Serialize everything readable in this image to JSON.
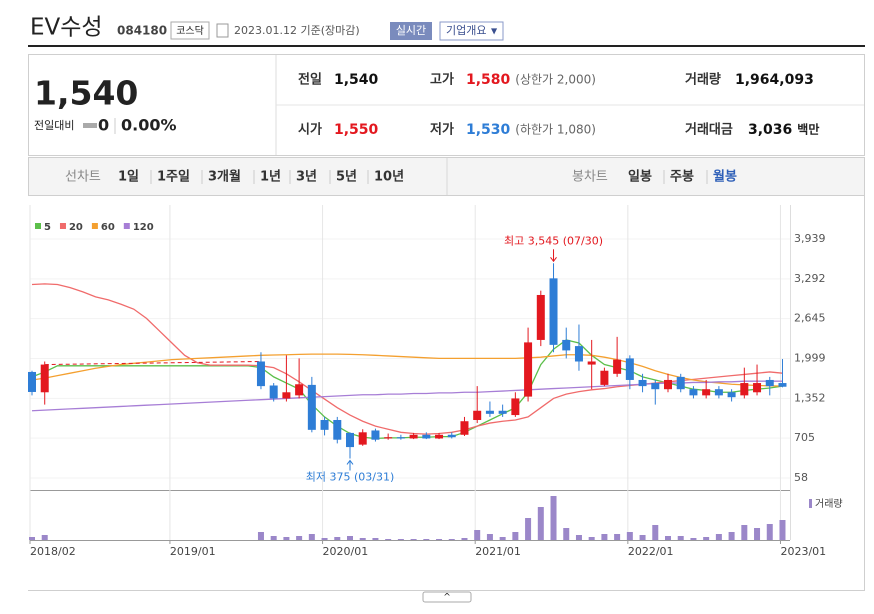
{
  "header": {
    "name": "EV수성",
    "code": "084180",
    "market": "코스닥",
    "date": "2023.01.12 기준(장마감)",
    "realtime": "실시간",
    "overview": "기업개요"
  },
  "quote": {
    "price": "1,540",
    "change_label": "전일대비",
    "change": "0",
    "change_pct": "0.00%",
    "rows": [
      [
        {
          "label": "전일",
          "value": "1,540"
        },
        {
          "label": "고가",
          "value": "1,580",
          "note": "(상한가 2,000)"
        },
        {
          "label": "거래량",
          "value": "1,964,093"
        }
      ],
      [
        {
          "label": "시가",
          "value": "1,550"
        },
        {
          "label": "저가",
          "value": "1,530",
          "note": "(하한가 1,080)"
        },
        {
          "label": "거래대금",
          "value": "3,036",
          "unit": "백만"
        }
      ]
    ]
  },
  "nav": {
    "line_label": "선차트",
    "line_periods": [
      "1일",
      "1주일",
      "3개월",
      "1년",
      "3년",
      "5년",
      "10년"
    ],
    "candle_label": "봉차트",
    "candle_periods": [
      "일봉",
      "주봉",
      "월봉"
    ],
    "candle_selected": 2
  },
  "chart_data": {
    "type": "candlestick",
    "categories": [
      "2018/02",
      null,
      null,
      null,
      null,
      null,
      null,
      null,
      null,
      null,
      null,
      "2019/01",
      null,
      null,
      null,
      null,
      null,
      null,
      null,
      null,
      null,
      null,
      null,
      "2020/01",
      null,
      null,
      null,
      null,
      null,
      null,
      null,
      null,
      null,
      null,
      null,
      "2021/01",
      null,
      null,
      null,
      null,
      null,
      null,
      null,
      null,
      null,
      null,
      null,
      "2022/01",
      null,
      null,
      null,
      null,
      null,
      null,
      null,
      null,
      null,
      null,
      null,
      "2023/01"
    ],
    "open": [
      1780,
      1450,
      null,
      null,
      null,
      null,
      null,
      null,
      null,
      null,
      null,
      null,
      null,
      null,
      null,
      null,
      null,
      null,
      1950,
      1560,
      1350,
      1400,
      1570,
      1000,
      1000,
      790,
      600,
      830,
      700,
      720,
      700,
      760,
      700,
      760,
      760,
      1000,
      1150,
      1150,
      1080,
      1380,
      2300,
      3300,
      2300,
      2200,
      1900,
      1570,
      1750,
      2000,
      1650,
      1600,
      1500,
      1700,
      1500,
      1400,
      1500,
      1450,
      1400,
      1450,
      1650,
      1600
    ],
    "high": [
      1800,
      1950,
      null,
      null,
      null,
      null,
      null,
      null,
      null,
      null,
      null,
      null,
      null,
      null,
      null,
      null,
      null,
      null,
      2100,
      1600,
      2050,
      2000,
      1700,
      1050,
      1050,
      800,
      850,
      860,
      780,
      760,
      790,
      800,
      790,
      800,
      1050,
      1550,
      1300,
      1250,
      1450,
      2500,
      3100,
      3545,
      2500,
      2550,
      2300,
      1850,
      2350,
      2050,
      1750,
      1650,
      1750,
      1750,
      1550,
      1650,
      1550,
      1500,
      1850,
      1900,
      1700,
      1990
    ],
    "low": [
      1400,
      1250,
      null,
      null,
      null,
      null,
      null,
      null,
      null,
      null,
      null,
      null,
      null,
      null,
      null,
      null,
      null,
      null,
      1500,
      1300,
      1300,
      1350,
      800,
      750,
      620,
      375,
      580,
      650,
      680,
      680,
      690,
      690,
      690,
      700,
      740,
      950,
      1050,
      1050,
      1050,
      1300,
      2200,
      2100,
      2000,
      1800,
      1500,
      1550,
      1700,
      1500,
      1450,
      1250,
      1450,
      1450,
      1350,
      1350,
      1350,
      1300,
      1350,
      1400,
      1400,
      1530
    ],
    "close": [
      1455,
      1900,
      null,
      null,
      null,
      null,
      null,
      null,
      null,
      null,
      null,
      null,
      null,
      null,
      null,
      null,
      null,
      null,
      1550,
      1350,
      1450,
      1580,
      840,
      840,
      680,
      560,
      800,
      680,
      720,
      700,
      760,
      700,
      760,
      720,
      980,
      1150,
      1100,
      1100,
      1350,
      2260,
      3030,
      2220,
      2130,
      1950,
      1950,
      1800,
      1980,
      1650,
      1550,
      1500,
      1650,
      1500,
      1400,
      1500,
      1400,
      1370,
      1600,
      1600,
      1550,
      1540
    ],
    "up_color": "#e3181f",
    "down_color": "#2e7dd6",
    "ylim": [
      58,
      3939
    ],
    "yticks": [
      {
        "value": 3939,
        "label": "3,939"
      },
      {
        "value": 3292,
        "label": "3,292"
      },
      {
        "value": 2645,
        "label": "2,645"
      },
      {
        "value": 1999,
        "label": "1,999"
      },
      {
        "value": 1352,
        "label": "1,352"
      },
      705,
      58
    ],
    "grid": true,
    "moving_averages": [
      {
        "name": "5",
        "color": "#5cbf4a",
        "values": [
          1700,
          1780,
          1880,
          1880,
          1880,
          1880,
          1880,
          1880,
          1880,
          1880,
          1880,
          1880,
          1880,
          1880,
          1880,
          1880,
          1880,
          1880,
          1850,
          1700,
          1600,
          1500,
          1250,
          1050,
          900,
          780,
          720,
          700,
          710,
          710,
          720,
          720,
          730,
          730,
          800,
          900,
          1000,
          1100,
          1200,
          1450,
          1900,
          2150,
          2300,
          2250,
          2050,
          1900,
          1850,
          1800,
          1700,
          1650,
          1600,
          1550,
          1500,
          1480,
          1450,
          1450,
          1480,
          1500,
          1520,
          1550
        ]
      },
      {
        "name": "20",
        "color": "#f06b6b",
        "values": [
          3200,
          3210,
          3200,
          3150,
          3080,
          3000,
          2950,
          2880,
          2800,
          2650,
          2450,
          2250,
          2050,
          1930,
          1890,
          1890,
          1890,
          1890,
          1880,
          1850,
          1750,
          1620,
          1480,
          1340,
          1200,
          1080,
          980,
          900,
          850,
          800,
          780,
          770,
          780,
          800,
          840,
          900,
          950,
          980,
          1000,
          1050,
          1200,
          1350,
          1420,
          1460,
          1490,
          1510,
          1540,
          1560,
          1580,
          1600,
          1620,
          1640,
          1660,
          1680,
          1700,
          1720,
          1740,
          1760,
          1780,
          1760
        ]
      },
      {
        "name": "60",
        "color": "#f4a030",
        "values": [
          1650,
          1680,
          1720,
          1760,
          1800,
          1840,
          1870,
          1900,
          1920,
          1940,
          1960,
          1980,
          1990,
          2000,
          2010,
          2020,
          2030,
          2040,
          2050,
          2055,
          2060,
          2065,
          2070,
          2070,
          2070,
          2065,
          2060,
          2050,
          2040,
          2030,
          2020,
          2010,
          2000,
          2000,
          2000,
          2000,
          2000,
          2000,
          2000,
          2010,
          2020,
          2040,
          2060,
          2060,
          2050,
          2020,
          1980,
          1930,
          1870,
          1800,
          1740,
          1690,
          1650,
          1620,
          1600,
          1580,
          1570,
          1560,
          1555,
          1550
        ]
      },
      {
        "name": "120",
        "color": "#a77ed6",
        "values": [
          1150,
          1160,
          1170,
          1180,
          1190,
          1200,
          1210,
          1220,
          1230,
          1240,
          1250,
          1260,
          1270,
          1280,
          1290,
          1300,
          1310,
          1320,
          1330,
          1340,
          1350,
          1360,
          1370,
          1380,
          1390,
          1400,
          1410,
          1410,
          1420,
          1420,
          1430,
          1430,
          1440,
          1440,
          1450,
          1450,
          1460,
          1470,
          1480,
          1490,
          1500,
          1510,
          1520,
          1530,
          1540,
          1550,
          1560,
          1570,
          1580,
          1590,
          1600,
          1600,
          1610,
          1610,
          1620,
          1620,
          1630,
          1630,
          1630,
          1630
        ]
      }
    ],
    "volume": {
      "name": "거래량",
      "color": "#9b87c9",
      "values": [
        3,
        5,
        null,
        null,
        null,
        null,
        null,
        null,
        null,
        null,
        null,
        null,
        null,
        null,
        null,
        null,
        null,
        null,
        8,
        4,
        3,
        4,
        6,
        2,
        3,
        4,
        2,
        2,
        1,
        1,
        1,
        1,
        1,
        1,
        2,
        10,
        6,
        3,
        8,
        22,
        33,
        44,
        12,
        5,
        3,
        6,
        6,
        8,
        5,
        15,
        4,
        4,
        2,
        3,
        6,
        8,
        15,
        12,
        16,
        20
      ]
    },
    "high_label": "최고 3,545 (07/30)",
    "low_label": "최저 375 (03/31)"
  }
}
